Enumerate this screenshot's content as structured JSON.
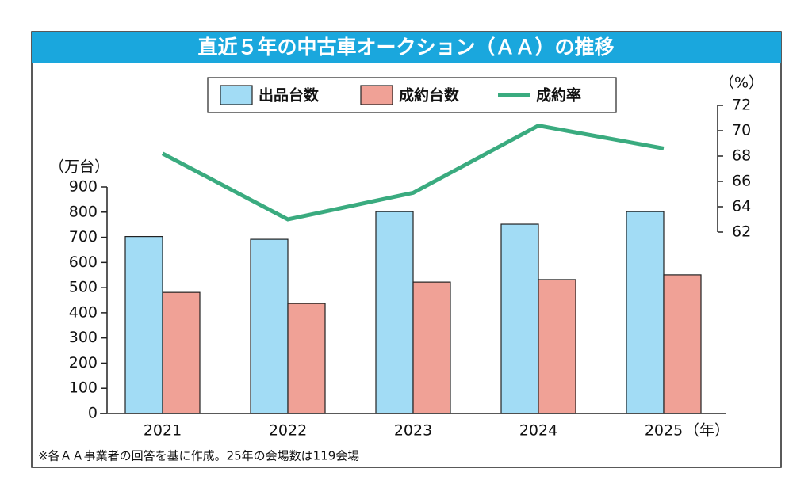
{
  "chart_data": {
    "type": "bar",
    "title": "直近５年の中古車オークション（ＡＡ）の推移",
    "y_label": "（万台）",
    "y2_label": "（%）",
    "x_unit": "（年）",
    "note": "※各ＡＡ事業者の回答を基に作成。25年の会場数は119会場",
    "categories": [
      "2021",
      "2022",
      "2023",
      "2024",
      "2025"
    ],
    "series": [
      {
        "name": "出品台数",
        "type": "bar",
        "color": "#a2dcf5",
        "values": [
          703,
          692,
          802,
          752,
          802
        ]
      },
      {
        "name": "成約台数",
        "type": "bar",
        "color": "#f0a196",
        "values": [
          481,
          437,
          522,
          532,
          551
        ]
      },
      {
        "name": "成約率",
        "type": "line",
        "axis": "y2",
        "color": "#3aab7f",
        "values": [
          68.2,
          63.0,
          65.1,
          70.4,
          68.6
        ]
      }
    ],
    "ylim": [
      0,
      900
    ],
    "yticks": [
      0,
      100,
      200,
      300,
      400,
      500,
      600,
      700,
      800,
      900
    ],
    "y2lim": [
      62,
      72
    ],
    "y2ticks": [
      62,
      64,
      66,
      68,
      70,
      72
    ]
  }
}
